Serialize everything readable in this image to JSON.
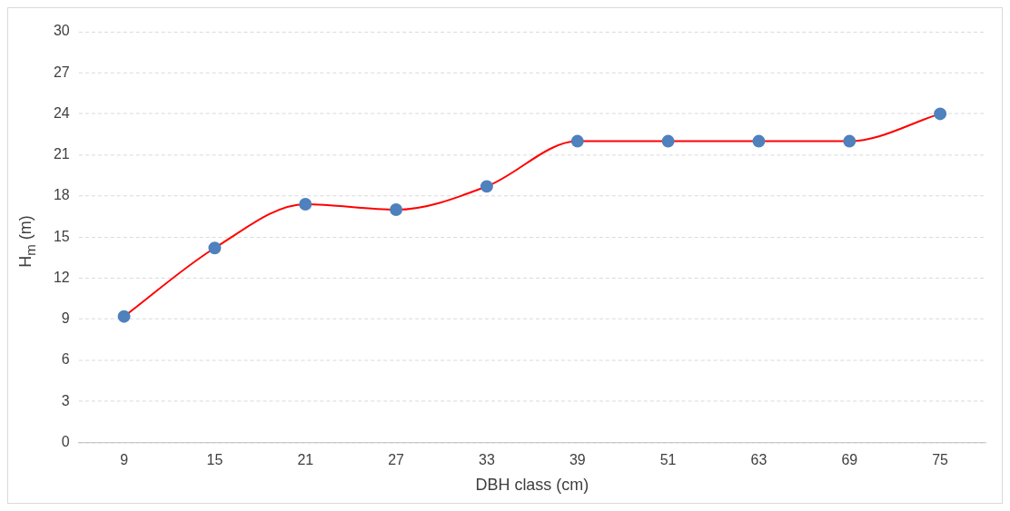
{
  "chart_data": {
    "type": "line",
    "xlabel": "DBH class (cm)",
    "ylabel": "H$_{m}$ (m)",
    "categories": [
      "9",
      "15",
      "21",
      "27",
      "33",
      "39",
      "51",
      "63",
      "69",
      "75"
    ],
    "series": [
      {
        "color": "#ff0000",
        "colors": [
          "#4f81bd",
          "#4f81bd",
          "#4f81bd",
          "#4f81bd",
          "#4f81bd",
          "#4f81bd",
          "#4f81bd",
          "#4f81bd",
          "#4f81bd",
          "#4f81bd"
        ],
        "values": [
          9.2,
          14.2,
          17.4,
          17.0,
          18.7,
          22.0,
          22.0,
          22.0,
          22.0,
          24.0
        ]
      }
    ],
    "ylim": [
      0,
      30
    ],
    "yticks": [
      0,
      3,
      6,
      9,
      12,
      15,
      18,
      21,
      24,
      27,
      30
    ],
    "grid": "y",
    "legend": false,
    "marker": "circle",
    "line_style": "solid"
  }
}
